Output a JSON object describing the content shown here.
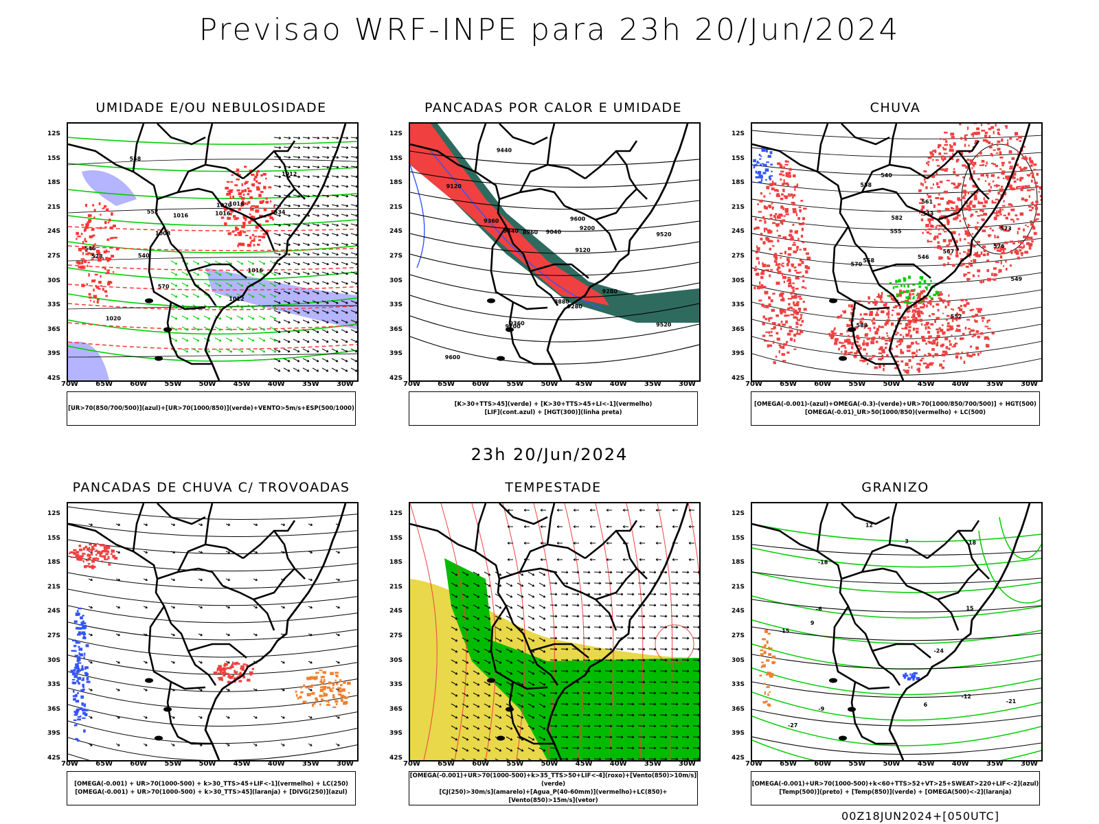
{
  "title": "Previsao WRF-INPE  para 23h 20/Jun/2024",
  "subtitle": "23h 20/Jun/2024",
  "footer": "00Z18JUN2024+[050UTC]",
  "axes": {
    "lat_labels": [
      "12S",
      "15S",
      "18S",
      "21S",
      "24S",
      "27S",
      "30S",
      "33S",
      "36S",
      "39S",
      "42S"
    ],
    "lon_labels": [
      "70W",
      "65W",
      "60W",
      "55W",
      "50W",
      "45W",
      "40W",
      "35W",
      "30W"
    ]
  },
  "panels": [
    {
      "id": "umidade",
      "title": "UMIDADE E/OU NEBULOSIDADE",
      "legend": [
        "[UR>70(850/700/500)](azul)+[UR>70(1000/850)](verde)+VENTO>5m/s+ESP(500/1000)"
      ],
      "contour_labels": [
        "1012",
        "1016",
        "1016",
        "1016",
        "1020",
        "1020",
        "1012",
        "1016",
        "1008",
        "570",
        "558",
        "552",
        "546",
        "540",
        "534",
        "528"
      ],
      "colors": {
        "humid_low": "#00cc00",
        "humid_high": "#b4b4ff",
        "thickness": "#ff3333",
        "pressure": "#000000"
      }
    },
    {
      "id": "pancadas-calor",
      "title": "PANCADAS POR CALOR E UMIDADE",
      "legend": [
        "[K>30+TTS>45](verde) + [K>30+TTS>45+LI<-1](vermelho)",
        "[LIF](cont.azul) + [HGT(300)](linha preta)"
      ],
      "contour_labels": [
        "9600",
        "9520",
        "9440",
        "9360",
        "9280",
        "9200",
        "9120",
        "9040",
        "8960",
        "8880",
        "9600",
        "9520",
        "9440",
        "9360",
        "9280",
        "9200",
        "9120"
      ],
      "colors": {
        "unstable": "#f04040",
        "humid": "#2e6b5e",
        "lif": "#3355ff",
        "hgt": "#000000"
      }
    },
    {
      "id": "chuva",
      "title": "CHUVA",
      "legend": [
        "[OMEGA(-0.001)-(azul)+OMEGA(-0.3)-(verde)+UR>70(1000/850/700/500)] + HGT(500)",
        "[OMEGA(-0.01)_UR>50(1000/850)(vermelho) + LC(500)"
      ],
      "contour_labels": [
        "588",
        "582",
        "576",
        "573",
        "570",
        "567",
        "561",
        "558",
        "555",
        "552",
        "549",
        "546",
        "543",
        "540",
        "558"
      ],
      "colors": {
        "rain": "#f04040",
        "omega_a": "#3355ff",
        "omega_b": "#00cc00"
      }
    },
    {
      "id": "trovoadas",
      "title": "PANCADAS DE CHUVA C/ TROVOADAS",
      "legend": [
        "[OMEGA(-0.001) + UR>70(1000-500) + k>30_TTS>45+LIF<-1](vermelho) + LC(250)",
        "[OMEGA(-0.001) + UR>70(1000-500) + k>30_TTS>45](laranja) + [DIVG(250)](azul)"
      ],
      "contour_labels": [],
      "colors": {
        "red": "#f04040",
        "orange": "#f08030",
        "blue": "#3355ff"
      }
    },
    {
      "id": "tempestade",
      "title": "TEMPESTADE",
      "legend": [
        "[OMEGA(-0.001)+UR>70(1000-500)+k>35_TTS>50+LIF<-4](roxo)+[Vento(850)>10m/s](verde)",
        "[CJ(250)>30m/s](amarelo)+[Agua_P(40-60mm)](vermelho)+LC(850)+[Vento(850)>15m/s](vetor)"
      ],
      "contour_labels": [],
      "colors": {
        "jet": "#e8d84a",
        "wind": "#00bb00",
        "stream": "#f04040"
      }
    },
    {
      "id": "granizo",
      "title": "GRANIZO",
      "legend": [
        "[OMEGA(-0.001)+UR>70(1000-500)+k<60+TTS>52+VT>25+SWEAT>220+LIF<-2](azul)",
        "[Temp(500)](preto) + [Temp(850)](verde) + [OMEGA(500)<-2](laranja)"
      ],
      "contour_labels": [
        "-6",
        "-9",
        "-12",
        "-15",
        "-18",
        "-21",
        "-24",
        "-27",
        "15",
        "12",
        "9",
        "6",
        "3",
        "18"
      ],
      "colors": {
        "t850": "#00cc00",
        "t500": "#000000",
        "hail": "#3355ff",
        "omega": "#f08030"
      }
    }
  ]
}
